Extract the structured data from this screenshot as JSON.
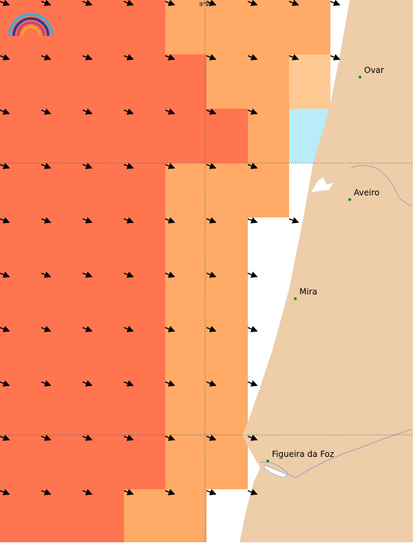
{
  "map": {
    "grid_label": "9°W",
    "places": [
      {
        "name": "Ovar"
      },
      {
        "name": "Aveiro"
      },
      {
        "name": "Mira"
      },
      {
        "name": "Figueira da Foz"
      }
    ]
  }
}
